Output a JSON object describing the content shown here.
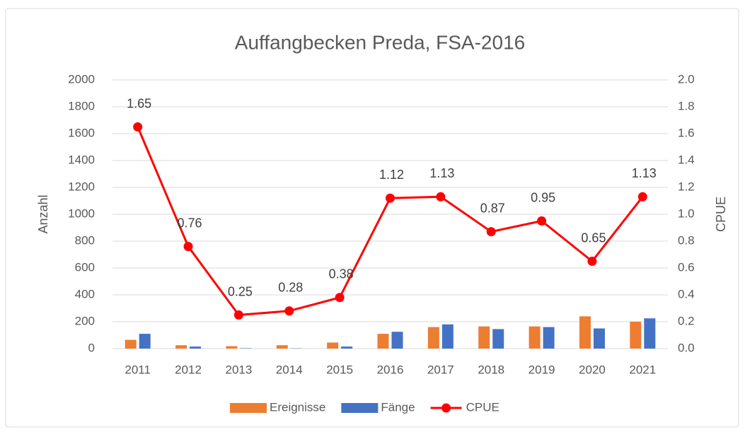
{
  "chart_data": {
    "type": "combo",
    "title": "Auffangbecken Preda, FSA-2016",
    "ylabel": "Anzahl",
    "y2label": "CPUE",
    "categories": [
      "2011",
      "2012",
      "2013",
      "2014",
      "2015",
      "2016",
      "2017",
      "2018",
      "2019",
      "2020",
      "2021"
    ],
    "series": [
      {
        "name": "Ereignisse",
        "type": "bar",
        "color": "#ED7D31",
        "values": [
          65,
          25,
          18,
          25,
          45,
          110,
          160,
          165,
          165,
          240,
          200
        ]
      },
      {
        "name": "Fänge",
        "type": "bar",
        "color": "#4472C4",
        "values": [
          110,
          15,
          3,
          2,
          15,
          125,
          180,
          145,
          160,
          150,
          225
        ]
      },
      {
        "name": "CPUE",
        "type": "line",
        "axis": "y2",
        "color": "#FF0000",
        "values": [
          1.65,
          0.76,
          0.25,
          0.28,
          0.38,
          1.12,
          1.13,
          0.87,
          0.95,
          0.65,
          1.13
        ]
      }
    ],
    "ylim": [
      0,
      2000
    ],
    "yticks": [
      0,
      200,
      400,
      600,
      800,
      1000,
      1200,
      1400,
      1600,
      1800,
      2000
    ],
    "y2lim": [
      0,
      2
    ],
    "y2ticks": [
      {
        "value": 0,
        "label": "0.0"
      },
      0.2,
      0.4,
      0.6,
      0.8,
      {
        "value": 1,
        "label": "1.0"
      },
      1.2,
      1.4,
      1.6,
      1.8,
      {
        "value": 2,
        "label": "2.0"
      }
    ],
    "grid": true,
    "legend": "bottom"
  }
}
